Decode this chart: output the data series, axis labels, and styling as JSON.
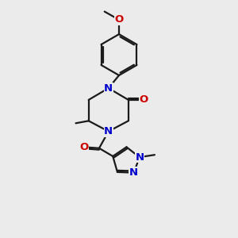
{
  "background_color": "#ebebeb",
  "bond_color": "#1a1a1a",
  "nitrogen_color": "#0000cc",
  "oxygen_color": "#cc0000",
  "line_width": 1.6,
  "figsize": [
    3.0,
    3.0
  ],
  "dpi": 100,
  "xlim": [
    0,
    10
  ],
  "ylim": [
    0,
    10
  ]
}
